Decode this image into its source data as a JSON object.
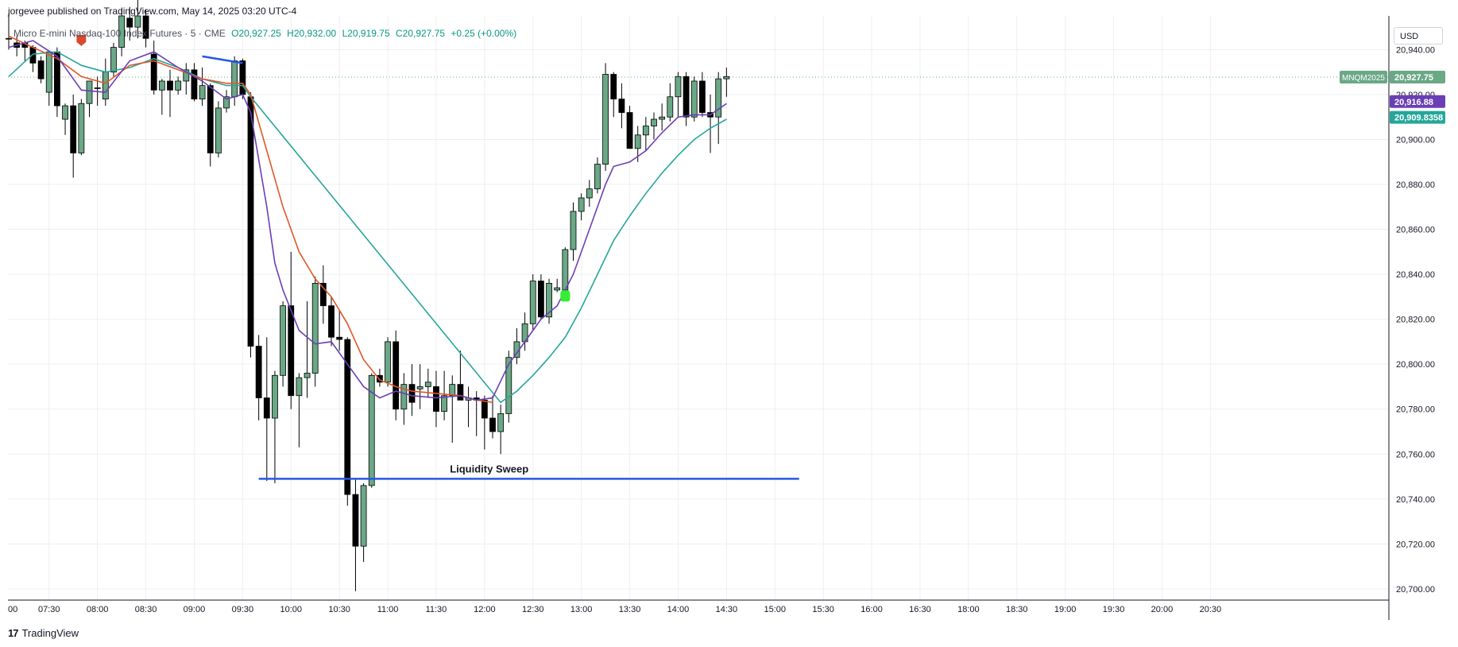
{
  "header": {
    "publish_line": "jorgevee published on TradingView.com, May 14, 2025 03:20 UTC-4"
  },
  "legend": {
    "symbol": "Micro E-mini Nasdaq-100 Index Futures · 5 · CME",
    "open": "O20,927.25",
    "high": "H20,932.00",
    "low": "L20,919.75",
    "close": "C20,927.75",
    "change": "+0.25 (+0.00%)"
  },
  "currency": "USD",
  "footer": {
    "brand": "TradingView",
    "logo_text": "17"
  },
  "colors": {
    "up": "#6aa886",
    "down": "#000000",
    "ema_fast": "#6a3fb5",
    "ema_mid": "#e0572a",
    "ema_slow": "#26a69a",
    "drawing": "#2457e6",
    "grid": "#eeeff3",
    "marker_sell": "#d84a2b",
    "marker_buy": "#33ee33"
  },
  "chart_data": {
    "type": "candlestick",
    "ylim": [
      20695,
      20955
    ],
    "y_ticks": [
      20700,
      20720,
      20740,
      20760,
      20780,
      20800,
      20820,
      20840,
      20860,
      20880,
      20900,
      20920,
      20940
    ],
    "y_tick_labels": [
      "20,700.00",
      "20,720.00",
      "20,740.00",
      "20,760.00",
      "20,780.00",
      "20,800.00",
      "20,820.00",
      "20,840.00",
      "20,860.00",
      "20,880.00",
      "20,900.00",
      "20,920.00",
      "20,940.00"
    ],
    "x_time_ticks": [
      {
        "bar": -1,
        "label": "00"
      },
      {
        "bar": 5,
        "label": "07:30"
      },
      {
        "bar": 11,
        "label": "08:00"
      },
      {
        "bar": 17,
        "label": "08:30"
      },
      {
        "bar": 23,
        "label": "09:00"
      },
      {
        "bar": 29,
        "label": "09:30"
      },
      {
        "bar": 35,
        "label": "10:00"
      },
      {
        "bar": 41,
        "label": "10:30"
      },
      {
        "bar": 47,
        "label": "11:00"
      },
      {
        "bar": 53,
        "label": "11:30"
      },
      {
        "bar": 59,
        "label": "12:00"
      },
      {
        "bar": 65,
        "label": "12:30"
      },
      {
        "bar": 71,
        "label": "13:00"
      },
      {
        "bar": 77,
        "label": "13:30"
      },
      {
        "bar": 83,
        "label": "14:00"
      },
      {
        "bar": 89,
        "label": "14:30"
      },
      {
        "bar": 95,
        "label": "15:00"
      },
      {
        "bar": 101,
        "label": "15:30"
      },
      {
        "bar": 107,
        "label": "16:00"
      },
      {
        "bar": 113,
        "label": "16:30"
      },
      {
        "bar": 119,
        "label": "18:00"
      },
      {
        "bar": 125,
        "label": "18:30"
      },
      {
        "bar": 131,
        "label": "19:00"
      },
      {
        "bar": 137,
        "label": "19:30"
      },
      {
        "bar": 143,
        "label": "20:00"
      },
      {
        "bar": 149,
        "label": "20:30"
      }
    ],
    "candles": [
      {
        "o": 20945,
        "h": 20956,
        "l": 20940,
        "c": 20945
      },
      {
        "o": 20943,
        "h": 20946,
        "l": 20937,
        "c": 20941
      },
      {
        "o": 20943,
        "h": 20944,
        "l": 20935,
        "c": 20941
      },
      {
        "o": 20941,
        "h": 20942,
        "l": 20930,
        "c": 20934
      },
      {
        "o": 20935,
        "h": 20937,
        "l": 20925,
        "c": 20927
      },
      {
        "o": 20921,
        "h": 20939,
        "l": 20915,
        "c": 20939
      },
      {
        "o": 20939,
        "h": 20941,
        "l": 20910,
        "c": 20915
      },
      {
        "o": 20909,
        "h": 20916,
        "l": 20902,
        "c": 20915
      },
      {
        "o": 20915,
        "h": 20920,
        "l": 20883,
        "c": 20894
      },
      {
        "o": 20894,
        "h": 20918,
        "l": 20893,
        "c": 20916
      },
      {
        "o": 20916,
        "h": 20926,
        "l": 20910,
        "c": 20926
      },
      {
        "o": 20923,
        "h": 20928,
        "l": 20915,
        "c": 20923
      },
      {
        "o": 20918,
        "h": 20936,
        "l": 20915,
        "c": 20930
      },
      {
        "o": 20930,
        "h": 20943,
        "l": 20928,
        "c": 20941
      },
      {
        "o": 20941,
        "h": 20958,
        "l": 20937,
        "c": 20955
      },
      {
        "o": 20954,
        "h": 20959,
        "l": 20944,
        "c": 20950
      },
      {
        "o": 20950,
        "h": 20963,
        "l": 20945,
        "c": 20955
      },
      {
        "o": 20955,
        "h": 20958,
        "l": 20941,
        "c": 20945
      },
      {
        "o": 20938,
        "h": 20944,
        "l": 20920,
        "c": 20922
      },
      {
        "o": 20922,
        "h": 20927,
        "l": 20911,
        "c": 20926
      },
      {
        "o": 20926,
        "h": 20931,
        "l": 20910,
        "c": 20922
      },
      {
        "o": 20922,
        "h": 20928,
        "l": 20920,
        "c": 20926
      },
      {
        "o": 20926,
        "h": 20934,
        "l": 20920,
        "c": 20931
      },
      {
        "o": 20931,
        "h": 20934,
        "l": 20917,
        "c": 20918
      },
      {
        "o": 20918,
        "h": 20932,
        "l": 20915,
        "c": 20924
      },
      {
        "o": 20924,
        "h": 20925,
        "l": 20888,
        "c": 20894
      },
      {
        "o": 20894,
        "h": 20917,
        "l": 20892,
        "c": 20914
      },
      {
        "o": 20914,
        "h": 20922,
        "l": 20912,
        "c": 20919
      },
      {
        "o": 20919,
        "h": 20937,
        "l": 20915,
        "c": 20935
      },
      {
        "o": 20935,
        "h": 20936,
        "l": 20918,
        "c": 20920
      },
      {
        "o": 20919,
        "h": 20921,
        "l": 20803,
        "c": 20808
      },
      {
        "o": 20808,
        "h": 20813,
        "l": 20775,
        "c": 20785
      },
      {
        "o": 20785,
        "h": 20812,
        "l": 20748,
        "c": 20776
      },
      {
        "o": 20776,
        "h": 20797,
        "l": 20747,
        "c": 20795
      },
      {
        "o": 20795,
        "h": 20828,
        "l": 20790,
        "c": 20826
      },
      {
        "o": 20826,
        "h": 20850,
        "l": 20780,
        "c": 20786
      },
      {
        "o": 20786,
        "h": 20796,
        "l": 20763,
        "c": 20794
      },
      {
        "o": 20794,
        "h": 20828,
        "l": 20785,
        "c": 20796
      },
      {
        "o": 20796,
        "h": 20839,
        "l": 20790,
        "c": 20836
      },
      {
        "o": 20836,
        "h": 20844,
        "l": 20818,
        "c": 20826
      },
      {
        "o": 20826,
        "h": 20830,
        "l": 20808,
        "c": 20812
      },
      {
        "o": 20812,
        "h": 20824,
        "l": 20806,
        "c": 20811
      },
      {
        "o": 20811,
        "h": 20812,
        "l": 20737,
        "c": 20742
      },
      {
        "o": 20742,
        "h": 20749,
        "l": 20699,
        "c": 20719
      },
      {
        "o": 20719,
        "h": 20747,
        "l": 20712,
        "c": 20746
      },
      {
        "o": 20746,
        "h": 20796,
        "l": 20745,
        "c": 20795
      },
      {
        "o": 20795,
        "h": 20798,
        "l": 20790,
        "c": 20792
      },
      {
        "o": 20792,
        "h": 20812,
        "l": 20790,
        "c": 20810
      },
      {
        "o": 20810,
        "h": 20815,
        "l": 20775,
        "c": 20780
      },
      {
        "o": 20780,
        "h": 20796,
        "l": 20773,
        "c": 20791
      },
      {
        "o": 20791,
        "h": 20800,
        "l": 20777,
        "c": 20783
      },
      {
        "o": 20789,
        "h": 20800,
        "l": 20780,
        "c": 20790
      },
      {
        "o": 20790,
        "h": 20798,
        "l": 20785,
        "c": 20792
      },
      {
        "o": 20790,
        "h": 20797,
        "l": 20772,
        "c": 20779
      },
      {
        "o": 20779,
        "h": 20797,
        "l": 20775,
        "c": 20786
      },
      {
        "o": 20786,
        "h": 20795,
        "l": 20765,
        "c": 20791
      },
      {
        "o": 20791,
        "h": 20806,
        "l": 20785,
        "c": 20784
      },
      {
        "o": 20784,
        "h": 20790,
        "l": 20772,
        "c": 20785
      },
      {
        "o": 20785,
        "h": 20788,
        "l": 20768,
        "c": 20784
      },
      {
        "o": 20784,
        "h": 20786,
        "l": 20762,
        "c": 20776
      },
      {
        "o": 20776,
        "h": 20786,
        "l": 20767,
        "c": 20770
      },
      {
        "o": 20770,
        "h": 20782,
        "l": 20760,
        "c": 20778
      },
      {
        "o": 20778,
        "h": 20806,
        "l": 20774,
        "c": 20803
      },
      {
        "o": 20803,
        "h": 20816,
        "l": 20800,
        "c": 20810
      },
      {
        "o": 20810,
        "h": 20823,
        "l": 20806,
        "c": 20818
      },
      {
        "o": 20818,
        "h": 20840,
        "l": 20815,
        "c": 20837
      },
      {
        "o": 20837,
        "h": 20840,
        "l": 20820,
        "c": 20821
      },
      {
        "o": 20821,
        "h": 20838,
        "l": 20818,
        "c": 20836
      },
      {
        "o": 20833,
        "h": 20838,
        "l": 20832,
        "c": 20834
      },
      {
        "o": 20833,
        "h": 20852,
        "l": 20830,
        "c": 20851
      },
      {
        "o": 20851,
        "h": 20872,
        "l": 20846,
        "c": 20868
      },
      {
        "o": 20868,
        "h": 20876,
        "l": 20864,
        "c": 20874
      },
      {
        "o": 20874,
        "h": 20882,
        "l": 20870,
        "c": 20878
      },
      {
        "o": 20878,
        "h": 20892,
        "l": 20876,
        "c": 20889
      },
      {
        "o": 20889,
        "h": 20934,
        "l": 20886,
        "c": 20929
      },
      {
        "o": 20929,
        "h": 20930,
        "l": 20910,
        "c": 20918
      },
      {
        "o": 20918,
        "h": 20925,
        "l": 20905,
        "c": 20912
      },
      {
        "o": 20912,
        "h": 20915,
        "l": 20898,
        "c": 20896
      },
      {
        "o": 20896,
        "h": 20906,
        "l": 20890,
        "c": 20902
      },
      {
        "o": 20902,
        "h": 20910,
        "l": 20895,
        "c": 20906
      },
      {
        "o": 20906,
        "h": 20912,
        "l": 20900,
        "c": 20909
      },
      {
        "o": 20909,
        "h": 20916,
        "l": 20904,
        "c": 20910
      },
      {
        "o": 20910,
        "h": 20925,
        "l": 20908,
        "c": 20919
      },
      {
        "o": 20919,
        "h": 20930,
        "l": 20910,
        "c": 20928
      },
      {
        "o": 20928,
        "h": 20930,
        "l": 20906,
        "c": 20910
      },
      {
        "o": 20910,
        "h": 20928,
        "l": 20908,
        "c": 20926
      },
      {
        "o": 20926,
        "h": 20930,
        "l": 20910,
        "c": 20912
      },
      {
        "o": 20912,
        "h": 20920,
        "l": 20894,
        "c": 20910
      },
      {
        "o": 20910,
        "h": 20930,
        "l": 20898,
        "c": 20927
      },
      {
        "o": 20927,
        "h": 20932,
        "l": 20919,
        "c": 20928
      }
    ],
    "ema_fast_points": [
      [
        0,
        20941
      ],
      [
        3,
        20944
      ],
      [
        6,
        20937
      ],
      [
        9,
        20922
      ],
      [
        12,
        20921
      ],
      [
        15,
        20935
      ],
      [
        18,
        20939
      ],
      [
        21,
        20932
      ],
      [
        24,
        20926
      ],
      [
        27,
        20918
      ],
      [
        29,
        20920
      ],
      [
        30,
        20912
      ],
      [
        32,
        20870
      ],
      [
        33,
        20845
      ],
      [
        34,
        20833
      ],
      [
        36,
        20815
      ],
      [
        38,
        20809
      ],
      [
        40,
        20810
      ],
      [
        42,
        20800
      ],
      [
        44,
        20790
      ],
      [
        46,
        20785
      ],
      [
        48,
        20788
      ],
      [
        50,
        20786
      ],
      [
        53,
        20785
      ],
      [
        56,
        20786
      ],
      [
        58,
        20784
      ],
      [
        60,
        20785
      ],
      [
        62,
        20800
      ],
      [
        64,
        20810
      ],
      [
        66,
        20820
      ],
      [
        68,
        20826
      ],
      [
        70,
        20840
      ],
      [
        72,
        20860
      ],
      [
        74,
        20880
      ],
      [
        75,
        20888
      ],
      [
        77,
        20890
      ],
      [
        79,
        20895
      ],
      [
        81,
        20903
      ],
      [
        83,
        20910
      ],
      [
        85,
        20911
      ],
      [
        87,
        20911
      ],
      [
        89,
        20916
      ]
    ],
    "ema_mid_points": [
      [
        0,
        20946
      ],
      [
        3,
        20941
      ],
      [
        6,
        20936
      ],
      [
        9,
        20928
      ],
      [
        12,
        20925
      ],
      [
        15,
        20933
      ],
      [
        18,
        20935
      ],
      [
        21,
        20931
      ],
      [
        24,
        20927
      ],
      [
        27,
        20925
      ],
      [
        29,
        20925
      ],
      [
        30,
        20920
      ],
      [
        32,
        20895
      ],
      [
        34,
        20870
      ],
      [
        36,
        20850
      ],
      [
        38,
        20838
      ],
      [
        40,
        20830
      ],
      [
        42,
        20818
      ],
      [
        44,
        20802
      ],
      [
        46,
        20793
      ],
      [
        48,
        20790
      ],
      [
        50,
        20788
      ],
      [
        53,
        20787
      ],
      [
        56,
        20786
      ],
      [
        58,
        20784
      ],
      [
        60,
        20783
      ]
    ],
    "ema_slow_points": [
      [
        0,
        20928
      ],
      [
        3,
        20938
      ],
      [
        6,
        20939
      ],
      [
        9,
        20933
      ],
      [
        12,
        20930
      ],
      [
        15,
        20932
      ],
      [
        18,
        20936
      ],
      [
        21,
        20932
      ],
      [
        24,
        20927
      ],
      [
        27,
        20924
      ],
      [
        29,
        20924
      ],
      [
        30,
        20919
      ],
      [
        61,
        20783
      ],
      [
        63,
        20788
      ],
      [
        65,
        20795
      ],
      [
        67,
        20803
      ],
      [
        69,
        20812
      ],
      [
        71,
        20825
      ],
      [
        73,
        20840
      ],
      [
        75,
        20855
      ],
      [
        77,
        20866
      ],
      [
        79,
        20876
      ],
      [
        81,
        20885
      ],
      [
        83,
        20893
      ],
      [
        85,
        20900
      ],
      [
        87,
        20905
      ],
      [
        89,
        20909
      ]
    ],
    "liquidity_sweep": {
      "label": "Liquidity Sweep",
      "price": 20749,
      "from_bar": 31,
      "to_bar": 98
    },
    "trendline": {
      "from_bar": 24,
      "from_price": 20937,
      "to_bar": 29,
      "to_price": 20934
    },
    "markers": [
      {
        "type": "sell",
        "bar": 9,
        "price": 20943
      },
      {
        "type": "buy",
        "bar": 69,
        "price": 20830
      }
    ],
    "last_price_line": 20927.75,
    "price_labels": [
      {
        "text": "MNQM2025",
        "value": "20,927.75",
        "price": 20927.75,
        "color": "#6aa886"
      },
      {
        "text": "",
        "value": "20,916.88",
        "price": 20916.88,
        "color": "#6a3fb5"
      },
      {
        "text": "",
        "value": "20,909.8358",
        "price": 20909.8358,
        "color": "#26a69a"
      }
    ]
  }
}
